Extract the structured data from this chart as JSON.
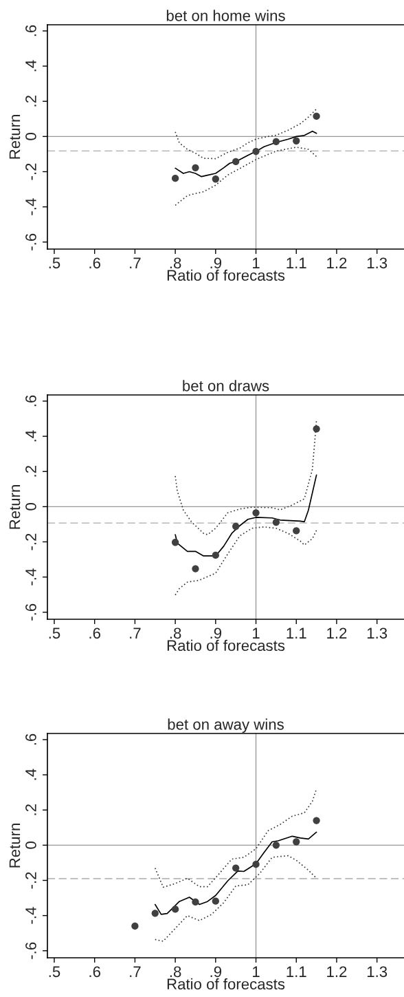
{
  "chart_data": [
    {
      "type": "scatter",
      "title": "bet on home wins",
      "xlabel": "Ratio of forecasts",
      "ylabel": "Return",
      "xlim": [
        0.483,
        1.367
      ],
      "ylim": [
        -0.64,
        0.635
      ],
      "xticks": [
        {
          "value": 0.5,
          "label": ".5"
        },
        {
          "value": 0.6,
          "label": ".6"
        },
        {
          "value": 0.7,
          "label": ".7"
        },
        {
          "value": 0.8,
          "label": ".8"
        },
        {
          "value": 0.9,
          "label": ".9"
        },
        1,
        {
          "value": 1.1,
          "label": "1.1"
        },
        {
          "value": 1.2,
          "label": "1.2"
        },
        {
          "value": 1.3,
          "label": "1.3"
        }
      ],
      "yticks": [
        {
          "value": -0.6,
          "label": "-.6"
        },
        {
          "value": -0.4,
          "label": "-.4"
        },
        {
          "value": -0.2,
          "label": "-.2"
        },
        0,
        {
          "value": 0.2,
          "label": ".2"
        },
        {
          "value": 0.4,
          "label": ".4"
        },
        {
          "value": 0.6,
          "label": ".6"
        }
      ],
      "grid": false,
      "ref_lines": [
        {
          "axis": "x",
          "value": 1,
          "color": "#999999",
          "line_style": "solid"
        },
        {
          "axis": "y",
          "value": 0,
          "color": "#999999",
          "line_style": "solid"
        },
        {
          "axis": "y",
          "value": -0.082,
          "color": "#aaaaaa",
          "line_style": "dashed"
        }
      ],
      "series": [
        {
          "color": "#404040",
          "marker": "circle",
          "x": [
            0.8,
            0.85,
            0.9,
            0.95,
            1.0,
            1.05,
            1.1,
            1.15
          ],
          "values": [
            -0.238,
            -0.178,
            -0.242,
            -0.143,
            -0.085,
            -0.029,
            -0.025,
            0.115
          ]
        },
        {
          "type": "line",
          "color": "#000000",
          "line_style": "solid",
          "x": [
            0.8,
            0.82,
            0.835,
            0.85,
            0.865,
            0.88,
            0.9,
            0.92,
            0.935,
            0.95,
            0.98,
            1.0,
            1.02,
            1.05,
            1.08,
            1.1,
            1.12,
            1.14,
            1.15
          ],
          "values": [
            -0.18,
            -0.21,
            -0.2,
            -0.21,
            -0.228,
            -0.22,
            -0.21,
            -0.178,
            -0.152,
            -0.143,
            -0.107,
            -0.085,
            -0.058,
            -0.034,
            -0.015,
            0.0,
            0.006,
            0.03,
            0.018
          ]
        },
        {
          "type": "line",
          "color": "#333333",
          "line_style": "dotted",
          "x": [
            0.8,
            0.81,
            0.83,
            0.85,
            0.87,
            0.9,
            0.93,
            0.96,
            0.98,
            1.0,
            1.03,
            1.05,
            1.08,
            1.11,
            1.13,
            1.15
          ],
          "values": [
            0.026,
            -0.036,
            -0.073,
            -0.095,
            -0.124,
            -0.126,
            -0.09,
            -0.066,
            -0.036,
            -0.015,
            0.0,
            0.007,
            0.036,
            0.073,
            0.11,
            0.156
          ]
        },
        {
          "type": "line",
          "color": "#333333",
          "line_style": "dotted",
          "x": [
            0.8,
            0.83,
            0.85,
            0.87,
            0.9,
            0.93,
            0.96,
            1.0,
            1.05,
            1.08,
            1.1,
            1.13,
            1.15
          ],
          "values": [
            -0.391,
            -0.336,
            -0.324,
            -0.314,
            -0.277,
            -0.219,
            -0.182,
            -0.131,
            -0.083,
            -0.07,
            -0.061,
            -0.073,
            -0.114
          ]
        }
      ]
    },
    {
      "type": "scatter",
      "title": "bet on draws",
      "xlabel": "Ratio of forecasts",
      "ylabel": "Return",
      "xlim": [
        0.483,
        1.367
      ],
      "ylim": [
        -0.64,
        0.635
      ],
      "xticks": [
        {
          "value": 0.5,
          "label": ".5"
        },
        {
          "value": 0.6,
          "label": ".6"
        },
        {
          "value": 0.7,
          "label": ".7"
        },
        {
          "value": 0.8,
          "label": ".8"
        },
        {
          "value": 0.9,
          "label": ".9"
        },
        1,
        {
          "value": 1.1,
          "label": "1.1"
        },
        {
          "value": 1.2,
          "label": "1.2"
        },
        {
          "value": 1.3,
          "label": "1.3"
        }
      ],
      "yticks": [
        {
          "value": -0.6,
          "label": "-.6"
        },
        {
          "value": -0.4,
          "label": "-.4"
        },
        {
          "value": -0.2,
          "label": "-.2"
        },
        0,
        {
          "value": 0.2,
          "label": ".2"
        },
        {
          "value": 0.4,
          "label": ".4"
        },
        {
          "value": 0.6,
          "label": ".6"
        }
      ],
      "grid": false,
      "ref_lines": [
        {
          "axis": "x",
          "value": 1,
          "color": "#999999",
          "line_style": "solid"
        },
        {
          "axis": "y",
          "value": 0,
          "color": "#999999",
          "line_style": "solid"
        },
        {
          "axis": "y",
          "value": -0.093,
          "color": "#aaaaaa",
          "line_style": "dashed"
        }
      ],
      "series": [
        {
          "color": "#404040",
          "marker": "circle",
          "x": [
            0.8,
            0.85,
            0.9,
            0.95,
            1.0,
            1.05,
            1.1,
            1.15
          ],
          "values": [
            -0.203,
            -0.353,
            -0.276,
            -0.112,
            -0.035,
            -0.089,
            -0.137,
            0.442
          ]
        },
        {
          "type": "line",
          "color": "#000000",
          "line_style": "solid",
          "x": [
            0.8,
            0.805,
            0.83,
            0.85,
            0.87,
            0.9,
            0.92,
            0.94,
            0.96,
            0.98,
            1.0,
            1.04,
            1.06,
            1.11,
            1.12,
            1.13,
            1.15
          ],
          "values": [
            -0.159,
            -0.207,
            -0.254,
            -0.254,
            -0.28,
            -0.28,
            -0.225,
            -0.152,
            -0.108,
            -0.072,
            -0.061,
            -0.064,
            -0.076,
            -0.082,
            -0.086,
            -0.02,
            0.18
          ]
        },
        {
          "type": "line",
          "color": "#333333",
          "line_style": "dotted",
          "x": [
            0.8,
            0.805,
            0.82,
            0.84,
            0.87,
            0.88,
            0.9,
            0.93,
            0.96,
            0.99,
            1.04,
            1.06,
            1.09,
            1.12,
            1.14,
            1.15
          ],
          "values": [
            0.174,
            0.089,
            -0.02,
            -0.086,
            -0.152,
            -0.159,
            -0.123,
            -0.035,
            -0.013,
            -0.003,
            -0.006,
            -0.018,
            0.009,
            0.045,
            0.213,
            0.49
          ]
        },
        {
          "type": "line",
          "color": "#333333",
          "line_style": "dotted",
          "x": [
            0.8,
            0.81,
            0.83,
            0.86,
            0.9,
            0.93,
            0.96,
            0.99,
            1.02,
            1.05,
            1.08,
            1.11,
            1.12,
            1.14,
            1.15
          ],
          "values": [
            -0.502,
            -0.466,
            -0.429,
            -0.418,
            -0.378,
            -0.269,
            -0.166,
            -0.123,
            -0.115,
            -0.123,
            -0.152,
            -0.196,
            -0.218,
            -0.181,
            -0.134
          ]
        }
      ]
    },
    {
      "type": "scatter",
      "title": "bet on away wins",
      "xlabel": "Ratio of forecasts",
      "ylabel": "Return",
      "xlim": [
        0.483,
        1.367
      ],
      "ylim": [
        -0.64,
        0.635
      ],
      "xticks": [
        {
          "value": 0.5,
          "label": ".5"
        },
        {
          "value": 0.6,
          "label": ".6"
        },
        {
          "value": 0.7,
          "label": ".7"
        },
        {
          "value": 0.8,
          "label": ".8"
        },
        {
          "value": 0.9,
          "label": ".9"
        },
        1,
        {
          "value": 1.1,
          "label": "1.1"
        },
        {
          "value": 1.2,
          "label": "1.2"
        },
        {
          "value": 1.3,
          "label": "1.3"
        }
      ],
      "yticks": [
        {
          "value": -0.6,
          "label": "-.6"
        },
        {
          "value": -0.4,
          "label": "-.4"
        },
        {
          "value": -0.2,
          "label": "-.2"
        },
        0,
        {
          "value": 0.2,
          "label": ".2"
        },
        {
          "value": 0.4,
          "label": ".4"
        },
        {
          "value": 0.6,
          "label": ".6"
        }
      ],
      "grid": false,
      "ref_lines": [
        {
          "axis": "x",
          "value": 1,
          "color": "#999999",
          "line_style": "solid"
        },
        {
          "axis": "y",
          "value": 0,
          "color": "#999999",
          "line_style": "solid"
        },
        {
          "axis": "y",
          "value": -0.19,
          "color": "#aaaaaa",
          "line_style": "dashed"
        }
      ],
      "series": [
        {
          "color": "#404040",
          "marker": "circle",
          "x": [
            0.7,
            0.75,
            0.8,
            0.85,
            0.9,
            0.95,
            1.0,
            1.05,
            1.1,
            1.15
          ],
          "values": [
            -0.46,
            -0.387,
            -0.364,
            -0.323,
            -0.318,
            -0.13,
            -0.109,
            0.0,
            0.019,
            0.14
          ]
        },
        {
          "type": "line",
          "color": "#000000",
          "line_style": "solid",
          "x": [
            0.75,
            0.765,
            0.78,
            0.81,
            0.835,
            0.86,
            0.88,
            0.9,
            0.93,
            0.955,
            0.97,
            1.0,
            1.02,
            1.04,
            1.055,
            1.09,
            1.11,
            1.13,
            1.15
          ],
          "values": [
            -0.337,
            -0.393,
            -0.388,
            -0.32,
            -0.296,
            -0.337,
            -0.32,
            -0.286,
            -0.203,
            -0.147,
            -0.149,
            -0.105,
            -0.042,
            0.019,
            0.025,
            0.051,
            0.041,
            0.035,
            0.074
          ]
        },
        {
          "type": "line",
          "color": "#333333",
          "line_style": "dotted",
          "x": [
            0.75,
            0.77,
            0.8,
            0.83,
            0.86,
            0.88,
            0.91,
            0.94,
            0.97,
            1.0,
            1.03,
            1.06,
            1.09,
            1.12,
            1.14,
            1.15
          ],
          "values": [
            -0.13,
            -0.239,
            -0.218,
            -0.188,
            -0.236,
            -0.236,
            -0.159,
            -0.079,
            -0.069,
            -0.02,
            0.082,
            0.118,
            0.165,
            0.184,
            0.25,
            0.32
          ]
        },
        {
          "type": "line",
          "color": "#333333",
          "line_style": "dotted",
          "x": [
            0.75,
            0.77,
            0.8,
            0.83,
            0.86,
            0.89,
            0.92,
            0.95,
            0.98,
            1.01,
            1.04,
            1.06,
            1.08,
            1.1,
            1.13,
            1.15
          ],
          "values": [
            -0.536,
            -0.546,
            -0.473,
            -0.4,
            -0.429,
            -0.393,
            -0.327,
            -0.232,
            -0.225,
            -0.159,
            -0.069,
            -0.064,
            -0.06,
            -0.086,
            -0.142,
            -0.188
          ]
        }
      ]
    }
  ]
}
